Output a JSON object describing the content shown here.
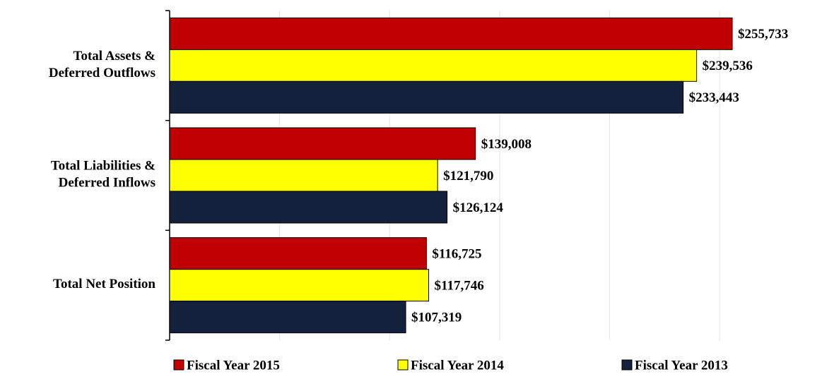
{
  "chart_data": {
    "type": "hbar",
    "categories": [
      "Total Assets &\nDeferred Outflows",
      "Total Liabilities &\nDeferred Inflows",
      "Total Net Position"
    ],
    "series": [
      {
        "name": "Fiscal Year 2015",
        "color": "#c00000",
        "values": [
          255733,
          139008,
          116725
        ],
        "value_labels": [
          "$255,733",
          "$139,008",
          "$116,725"
        ]
      },
      {
        "name": "Fiscal Year 2014",
        "color": "#ffff00",
        "values": [
          239536,
          121790,
          117746
        ],
        "value_labels": [
          "$239,536",
          "$121,790",
          "$117,746"
        ]
      },
      {
        "name": "Fiscal Year 2013",
        "color": "#14213d",
        "values": [
          233443,
          126124,
          107319
        ],
        "value_labels": [
          "$233,443",
          "$126,124",
          "$107,319"
        ]
      }
    ],
    "xlim": [
      0,
      275000
    ],
    "xticks": [
      50000,
      100000,
      150000,
      200000,
      250000
    ],
    "xtick_labels": false,
    "grid": true,
    "legend": "bottom"
  }
}
